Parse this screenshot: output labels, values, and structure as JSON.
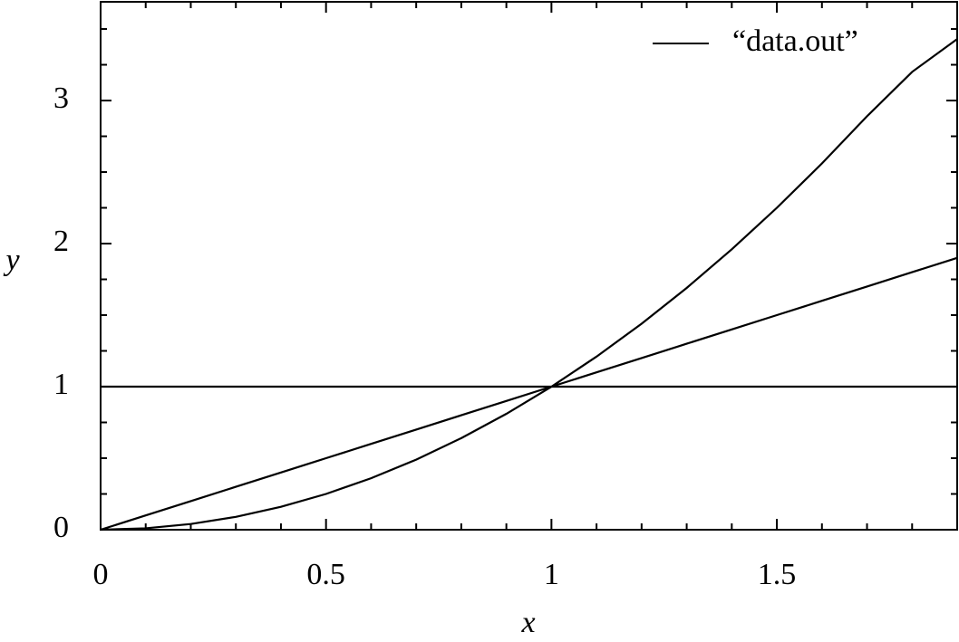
{
  "chart_data": {
    "type": "line",
    "xlabel": "x",
    "ylabel": "y",
    "x": [
      0,
      0.1,
      0.2,
      0.3,
      0.4,
      0.5,
      0.6,
      0.7,
      0.8,
      0.9,
      1,
      1.1,
      1.2,
      1.3,
      1.4,
      1.5,
      1.6,
      1.7,
      1.8,
      1.9,
      null,
      0,
      0.1,
      0.2,
      0.3,
      0.4,
      0.5,
      0.6,
      0.7,
      0.8,
      0.9,
      1,
      1.1,
      1.2,
      1.3,
      1.4,
      1.5,
      1.6,
      1.7,
      1.8,
      1.9,
      null,
      0,
      0.1,
      0.2,
      0.3,
      0.4,
      0.5,
      0.6,
      0.7,
      0.8,
      0.9,
      1,
      1.1,
      1.2,
      1.3,
      1.4,
      1.5,
      1.6,
      1.7,
      1.8,
      1.9
    ],
    "series": [
      {
        "name": "“data.out”",
        "color": "#000000",
        "values": [
          1,
          1,
          1,
          1,
          1,
          1,
          1,
          1,
          1,
          1,
          1,
          1,
          1,
          1,
          1,
          1,
          1,
          1,
          1,
          1,
          null,
          0,
          0.1,
          0.2,
          0.3,
          0.4,
          0.5,
          0.6,
          0.7,
          0.8,
          0.9,
          1,
          1.1,
          1.2,
          1.3,
          1.4,
          1.5,
          1.6,
          1.7,
          1.8,
          1.9,
          null,
          0,
          0.01,
          0.04,
          0.09,
          0.16,
          0.25,
          0.36,
          0.49,
          0.64,
          0.81,
          1,
          1.21,
          1.44,
          1.69,
          1.96,
          2.25,
          2.56,
          2.89,
          3.2,
          3.43
        ]
      }
    ],
    "xlim": [
      0,
      1.9
    ],
    "ylim": [
      0,
      3.69
    ],
    "xticks": [
      0,
      0.5,
      1,
      1.5
    ],
    "yticks": [
      0,
      1,
      2,
      3
    ],
    "xminorticks": [
      0.1,
      0.2,
      0.3,
      0.4,
      0.6,
      0.7,
      0.8,
      0.9,
      1.1,
      1.2,
      1.3,
      1.4,
      1.6,
      1.7,
      1.8
    ],
    "yminorticks": [
      0.25,
      0.5,
      0.75,
      1.25,
      1.5,
      1.75,
      2.25,
      2.5,
      2.75,
      3.25,
      3.5
    ],
    "legend": "upper right",
    "grid": false
  }
}
